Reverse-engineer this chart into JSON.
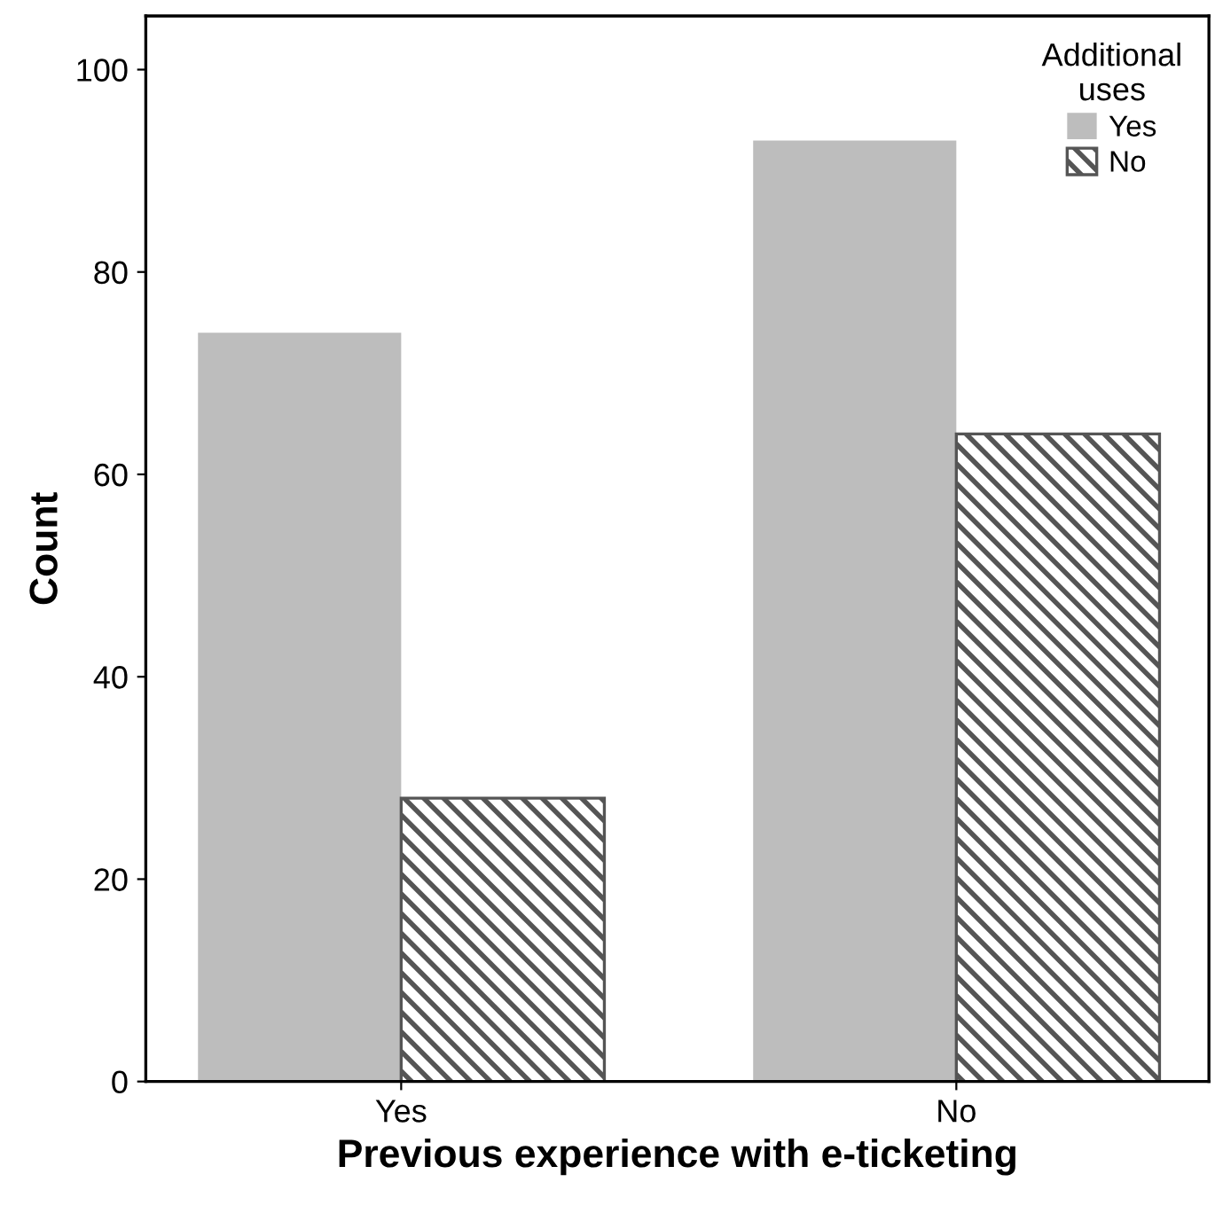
{
  "chart_data": {
    "type": "bar",
    "xlabel": "Previous experience with e-ticketing",
    "ylabel": "Count",
    "legend_title": "Additional\nuses",
    "categories": [
      "Yes",
      "No"
    ],
    "series": [
      {
        "name": "Yes",
        "color": "#bdbdbd",
        "values": [
          74,
          93
        ]
      },
      {
        "name": "No",
        "color": "#555555",
        "values": [
          28,
          64
        ]
      }
    ],
    "ylim": [
      0,
      105.3
    ],
    "yticks": [
      0,
      20,
      40,
      60,
      80,
      100
    ],
    "grid": false,
    "legend": "top right"
  }
}
